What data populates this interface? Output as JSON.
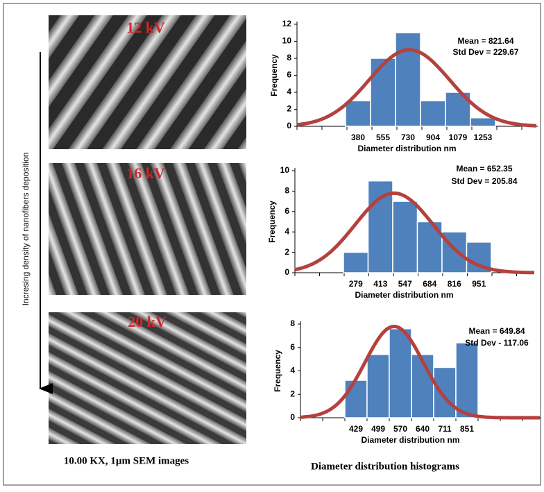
{
  "sem_panels": [
    {
      "label": "12 kV"
    },
    {
      "label": "16 kV"
    },
    {
      "label": "20 kV"
    }
  ],
  "arrow_label": "Incresing density of nanofibers deposition",
  "captions": {
    "left": "10.00 KX, 1µm SEM images",
    "right": "Diameter distribution histograms"
  },
  "chart_data": [
    {
      "type": "bar",
      "x_label": "Diameter distribution  nm",
      "y_label": "Frequency",
      "annotations": [
        "Mean = 821.64",
        "Std Dev = 229.67"
      ],
      "categories": [
        "380",
        "555",
        "730",
        "904",
        "1079",
        "1253"
      ],
      "values": [
        3,
        8,
        11,
        3,
        4,
        1
      ],
      "color": "#4f81bd",
      "curve_color": "#b5413f",
      "ylim": [
        0,
        12
      ],
      "yticks": [
        0,
        2,
        4,
        6,
        8,
        10,
        12
      ]
    },
    {
      "type": "bar",
      "x_label": "Diameter distribution  nm",
      "y_label": "Frequency",
      "annotations": [
        "Mean = 652.35",
        "Std Dev  = 205.84"
      ],
      "categories": [
        "279",
        "413",
        "547",
        "684",
        "816",
        "951"
      ],
      "values": [
        2,
        9,
        7,
        5,
        4,
        3
      ],
      "color": "#4f81bd",
      "curve_color": "#b5413f",
      "ylim": [
        0,
        10
      ],
      "yticks": [
        0,
        2,
        4,
        6,
        8,
        10
      ]
    },
    {
      "type": "bar",
      "x_label": "Diameter distribution  nm",
      "y_label": "Frequency",
      "annotations": [
        "Mean = 649.84",
        "Std Dev - 117.06"
      ],
      "categories": [
        "429",
        "499",
        "570",
        "640",
        "711",
        "851"
      ],
      "values": [
        3.2,
        5.4,
        7.6,
        5.4,
        4.3,
        6.4
      ],
      "color": "#4f81bd",
      "curve_color": "#b5413f",
      "ylim": [
        0,
        8
      ],
      "yticks": [
        0,
        2,
        4,
        6,
        8
      ]
    }
  ]
}
